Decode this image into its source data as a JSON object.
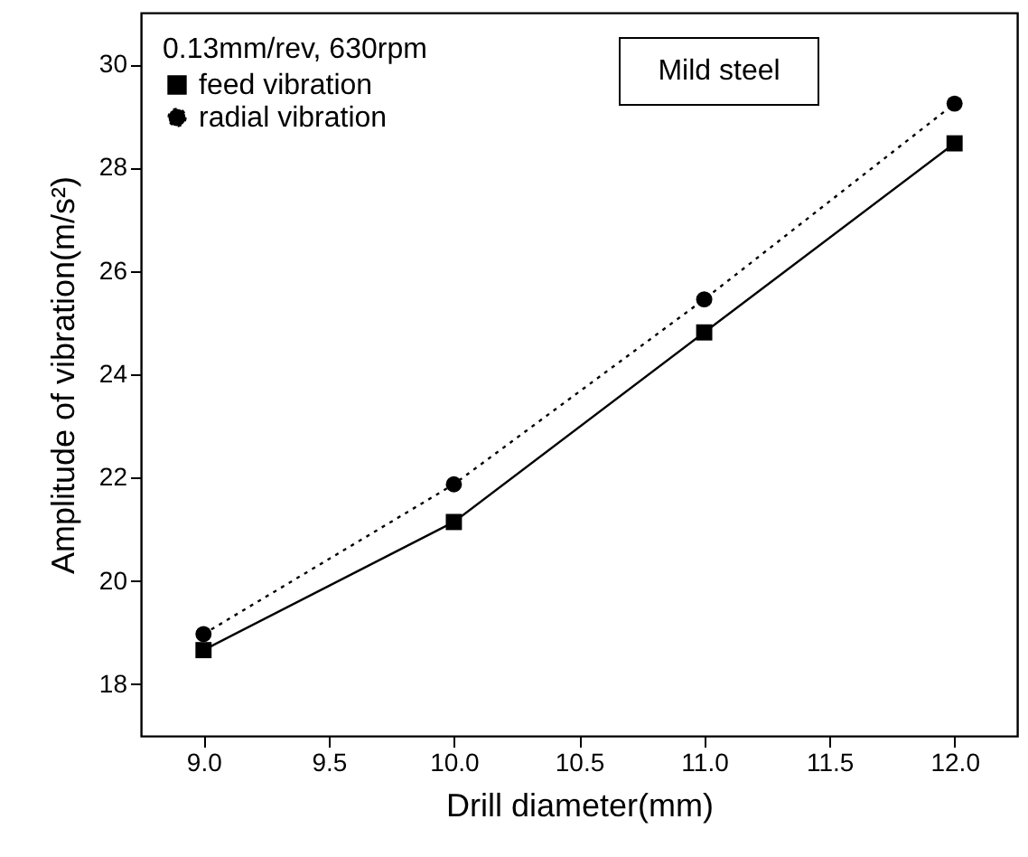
{
  "chart_data": {
    "type": "line",
    "xlabel": "Drill diameter(mm)",
    "ylabel": "Amplitude of vibration(m/s²)",
    "legend_title": "0.13mm/rev, 630rpm",
    "legend": "top left",
    "annotations": [
      "Mild steel"
    ],
    "x": [
      9.0,
      10.0,
      11.0,
      12.0
    ],
    "series": [
      {
        "name": "feed vibration",
        "color": "#000000",
        "marker": "square",
        "line_style": "solid",
        "values": [
          18.66,
          21.14,
          24.81,
          28.47
        ]
      },
      {
        "name": "radial vibration",
        "color": "#000000",
        "marker": "circle",
        "line_style": "dotted",
        "values": [
          18.97,
          21.87,
          25.45,
          29.24
        ]
      }
    ],
    "xlim": [
      8.75,
      12.25
    ],
    "xticks": [
      {
        "value": 9,
        "label": "9.0"
      },
      9.5,
      {
        "value": 10,
        "label": "10.0"
      },
      10.5,
      {
        "value": 11,
        "label": "11.0"
      },
      11.5,
      {
        "value": 12,
        "label": "12.0"
      }
    ],
    "ylim": [
      17,
      31
    ],
    "yticks": [
      18,
      20,
      22,
      24,
      26,
      28,
      30
    ],
    "grid": false
  }
}
